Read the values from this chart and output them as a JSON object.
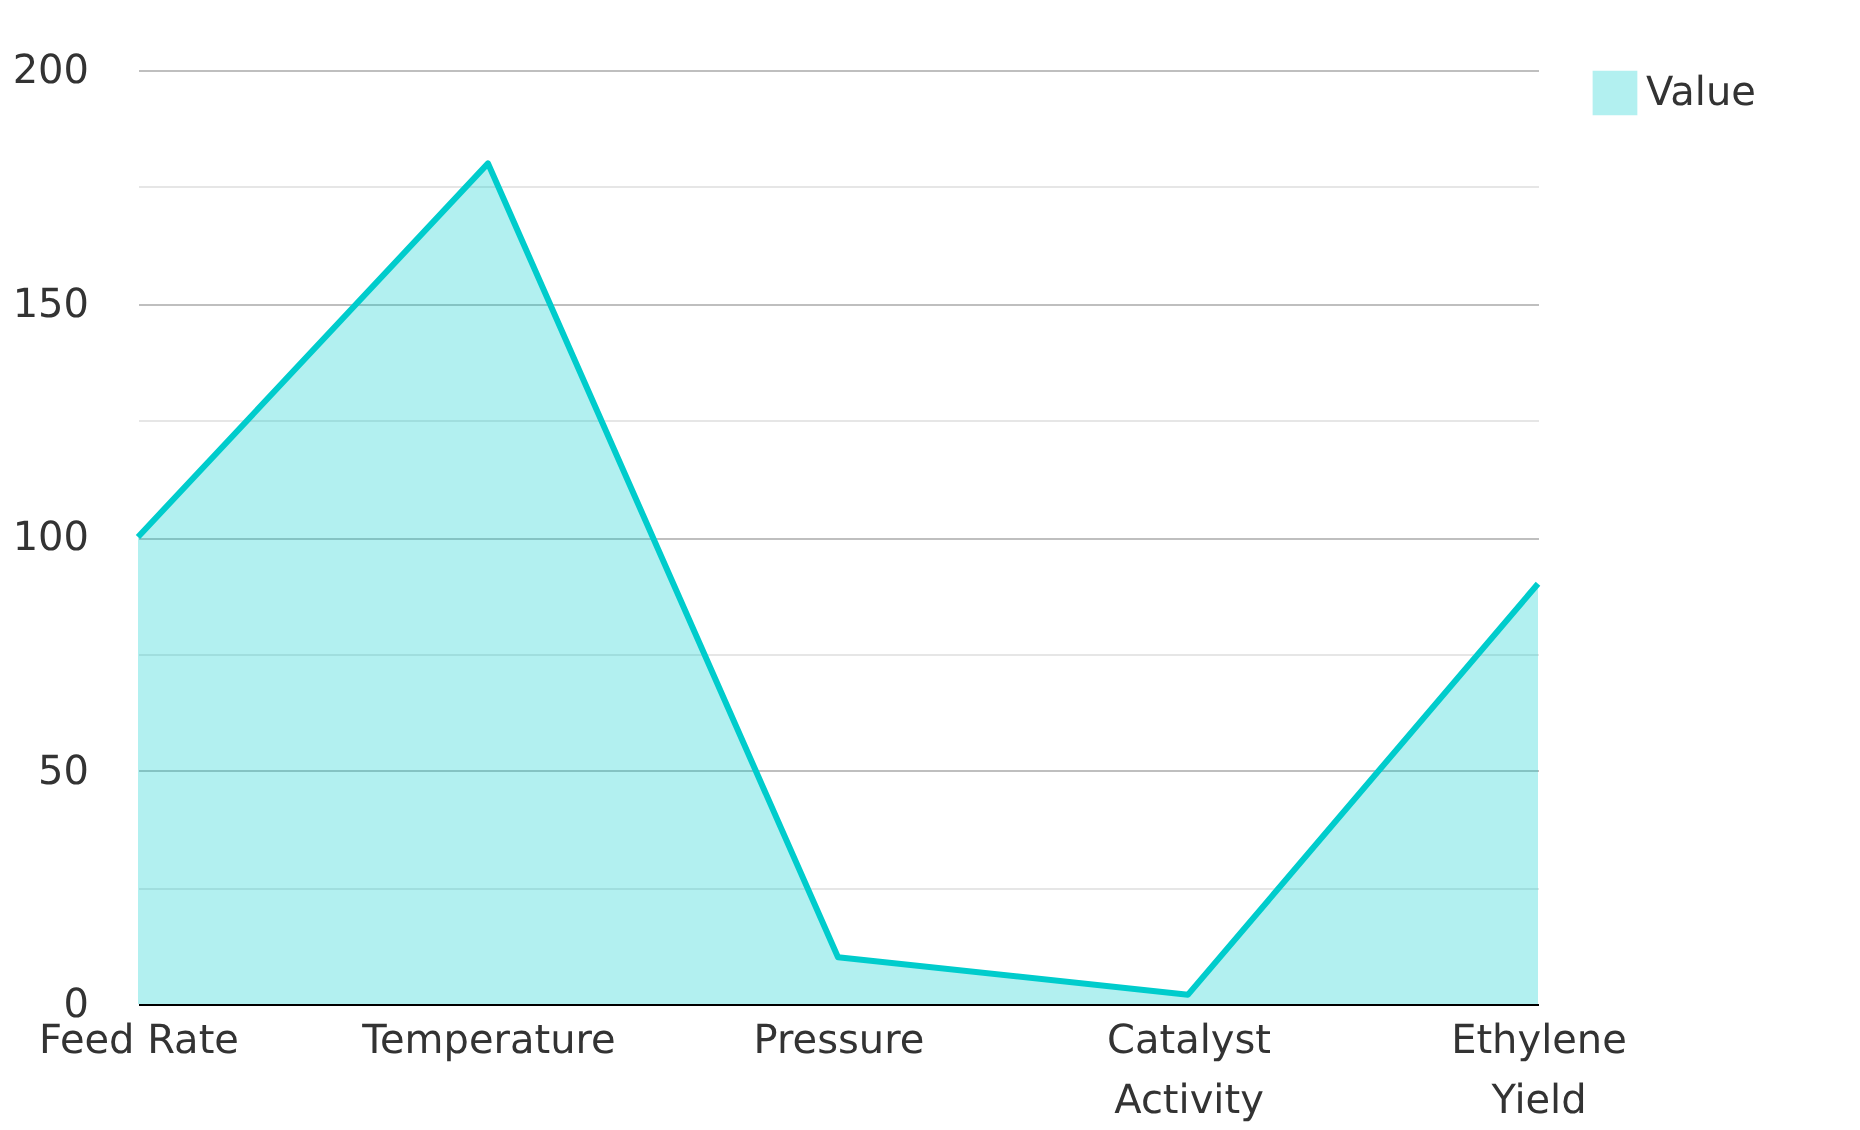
{
  "chart_data": {
    "type": "area",
    "categories": [
      "Feed Rate",
      "Temperature",
      "Pressure",
      "Catalyst Activity",
      "Ethylene Yield"
    ],
    "series": [
      {
        "name": "Value",
        "color": "#00cccc",
        "values": [
          100,
          180,
          10,
          2,
          90
        ]
      }
    ],
    "ylim": [
      0,
      200
    ],
    "yticks": [
      0,
      {
        "value": 25,
        "label": null
      },
      50,
      {
        "value": 75,
        "label": null
      },
      100,
      {
        "value": 125,
        "label": null
      },
      150,
      {
        "value": 175,
        "label": null
      },
      200
    ],
    "grid": "y",
    "legend": "top right"
  }
}
